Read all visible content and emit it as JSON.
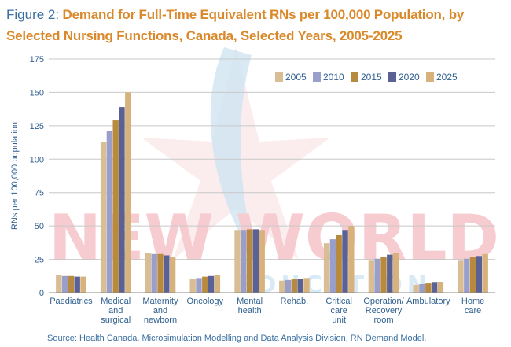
{
  "figure": {
    "label": "Figure 2:",
    "title": "Demand for Full-Time Equivalent RNs per 100,000 Population, by Selected Nursing Functions, Canada, Selected Years, 2005-2025"
  },
  "source": "Source: Health Canada, Microsimulation Modelling and Data Analysis Division, RN Demand Model.",
  "watermark": {
    "line1": "NEW WORLD",
    "line2": "EDUCATION"
  },
  "colors": {
    "2005": "#d9bd95",
    "2010": "#9a9fc9",
    "2015": "#b88a3e",
    "2020": "#5a6194",
    "2025": "#d8b27c",
    "gridline": "#c8c8c8",
    "axis_text": "#2f5f8f",
    "title_orange": "#d9882a",
    "title_blue": "#3a6fa0"
  },
  "chart_data": {
    "type": "bar",
    "title": "Demand for Full-Time Equivalent RNs per 100,000 Population, by Selected Nursing Functions, Canada, Selected Years, 2005-2025",
    "xlabel": "",
    "ylabel": "RNs per 100,000 population",
    "ylim": [
      0,
      175
    ],
    "yticks": [
      0,
      25,
      50,
      75,
      100,
      125,
      150,
      175
    ],
    "grid": true,
    "legend_position": "top-right",
    "categories": [
      [
        "Paediatrics"
      ],
      [
        "Medical",
        "and",
        "surgical"
      ],
      [
        "Maternity",
        "and",
        "newborn"
      ],
      [
        "Oncology"
      ],
      [
        "Mental",
        "health"
      ],
      [
        "Rehab."
      ],
      [
        "Critical",
        "care",
        "unit"
      ],
      [
        "Operation/",
        "Recovery",
        "room"
      ],
      [
        "Ambulatory"
      ],
      [
        "Home",
        "care"
      ]
    ],
    "series": [
      {
        "name": "2005",
        "values": [
          13,
          113,
          30,
          10,
          47,
          9,
          37,
          24,
          6,
          24
        ]
      },
      {
        "name": "2010",
        "values": [
          12.5,
          121,
          29,
          11,
          47,
          9.5,
          40,
          25.5,
          6.5,
          25.5
        ]
      },
      {
        "name": "2015",
        "values": [
          12.5,
          129,
          29,
          12,
          47.5,
          10,
          43,
          27,
          7,
          26.5
        ]
      },
      {
        "name": "2020",
        "values": [
          12,
          139,
          28,
          12.5,
          47.5,
          10.5,
          47,
          28.5,
          7.5,
          27.5
        ]
      },
      {
        "name": "2025",
        "values": [
          12,
          150,
          26.5,
          13,
          47,
          11,
          50,
          29.5,
          8,
          29
        ]
      }
    ]
  }
}
